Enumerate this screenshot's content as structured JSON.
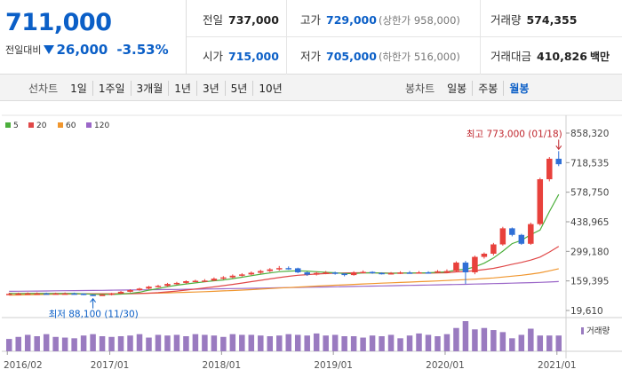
{
  "quote": {
    "price": "711,000",
    "change_label": "전일대비",
    "change_value": "26,000",
    "change_pct": "-3.53%",
    "prev_close_label": "전일",
    "prev_close": "737,000",
    "high_label": "고가",
    "high": "729,000",
    "upper_limit": "(상한가 958,000)",
    "volume_label": "거래량",
    "volume": "574,355",
    "open_label": "시가",
    "open": "715,000",
    "low_label": "저가",
    "low": "705,000",
    "lower_limit": "(하한가 516,000)",
    "amount_label": "거래대금",
    "amount": "410,826",
    "amount_unit": "백만"
  },
  "toolbar": {
    "line_chart_label": "선차트",
    "periods": [
      "1일",
      "1주일",
      "3개월",
      "1년",
      "3년",
      "5년",
      "10년"
    ],
    "candle_chart_label": "봉차트",
    "candle_periods": [
      "일봉",
      "주봉",
      "월봉"
    ],
    "active_candle": "월봉"
  },
  "colors": {
    "up": "#e8413c",
    "down": "#2f6fd6",
    "ma5": "#4caf3c",
    "ma20": "#e04848",
    "ma60": "#f0962e",
    "ma120": "#9b67c8",
    "volume": "#9a7bc0"
  },
  "chart_data": {
    "type": "candlestick",
    "title": "",
    "legend": [
      "5",
      "20",
      "60",
      "120"
    ],
    "y_axis_labels": [
      "858,320",
      "718,535",
      "578,750",
      "438,965",
      "299,180",
      "159,395",
      "19,610"
    ],
    "y_ticks": [
      858320,
      718535,
      578750,
      438965,
      299180,
      159395,
      19610
    ],
    "ylim": [
      19610,
      858320
    ],
    "x_axis_labels": [
      "2016/02",
      "2017/01",
      "2018/01",
      "2019/01",
      "2020/01",
      "2021/01"
    ],
    "x_label_index": [
      0,
      11,
      23,
      35,
      47,
      59
    ],
    "high_annotation": "최고 773,000 (01/18)",
    "low_annotation": "최저 88,100 (11/30)",
    "volume_label": "거래량",
    "months": [
      "2016/02",
      "2016/03",
      "2016/04",
      "2016/05",
      "2016/06",
      "2016/07",
      "2016/08",
      "2016/09",
      "2016/10",
      "2016/11",
      "2016/12",
      "2017/01",
      "2017/02",
      "2017/03",
      "2017/04",
      "2017/05",
      "2017/06",
      "2017/07",
      "2017/08",
      "2017/09",
      "2017/10",
      "2017/11",
      "2017/12",
      "2018/01",
      "2018/02",
      "2018/03",
      "2018/04",
      "2018/05",
      "2018/06",
      "2018/07",
      "2018/08",
      "2018/09",
      "2018/10",
      "2018/11",
      "2018/12",
      "2019/01",
      "2019/02",
      "2019/03",
      "2019/04",
      "2019/05",
      "2019/06",
      "2019/07",
      "2019/08",
      "2019/09",
      "2019/10",
      "2019/11",
      "2019/12",
      "2020/01",
      "2020/02",
      "2020/03",
      "2020/04",
      "2020/05",
      "2020/06",
      "2020/07",
      "2020/08",
      "2020/09",
      "2020/10",
      "2020/11",
      "2020/12",
      "2021/01"
    ],
    "open": [
      97000,
      98000,
      99000,
      100000,
      100000,
      99000,
      100000,
      100000,
      99000,
      94000,
      90000,
      94000,
      100000,
      108000,
      116000,
      123000,
      132000,
      136000,
      145000,
      150000,
      158000,
      160000,
      161000,
      170000,
      176000,
      184000,
      190000,
      198000,
      206000,
      214000,
      220000,
      219000,
      200000,
      189000,
      197000,
      199000,
      194000,
      187000,
      199000,
      202000,
      197000,
      194000,
      196000,
      199000,
      198000,
      200000,
      199000,
      205000,
      206000,
      246000,
      200000,
      273000,
      288000,
      332000,
      408000,
      377000,
      335000,
      428000,
      640000,
      737000
    ],
    "close": [
      98000,
      99000,
      100000,
      100000,
      99000,
      100000,
      100000,
      99000,
      94000,
      90000,
      94000,
      100000,
      108000,
      116000,
      123000,
      132000,
      136000,
      145000,
      150000,
      158000,
      160000,
      161000,
      170000,
      176000,
      184000,
      190000,
      198000,
      206000,
      214000,
      220000,
      219000,
      200000,
      189000,
      197000,
      199000,
      194000,
      187000,
      199000,
      202000,
      197000,
      194000,
      196000,
      199000,
      198000,
      200000,
      199000,
      205000,
      206000,
      246000,
      200000,
      273000,
      288000,
      332000,
      408000,
      377000,
      335000,
      428000,
      640000,
      737000,
      711000
    ],
    "high": [
      103000,
      104000,
      105000,
      105000,
      104000,
      104000,
      105000,
      104000,
      101000,
      96000,
      97000,
      103000,
      112000,
      120000,
      127000,
      136000,
      141000,
      150000,
      155000,
      162000,
      165000,
      168000,
      176000,
      182000,
      190000,
      196000,
      204000,
      212000,
      220000,
      230000,
      228000,
      222000,
      204000,
      203000,
      206000,
      203000,
      196000,
      205000,
      209000,
      205000,
      200000,
      201000,
      205000,
      206000,
      206000,
      205000,
      211000,
      214000,
      252000,
      254000,
      279000,
      294000,
      339000,
      415000,
      412000,
      382000,
      435000,
      647000,
      745000,
      773000
    ],
    "low": [
      93000,
      94000,
      95000,
      96000,
      95000,
      95000,
      96000,
      95000,
      92000,
      88100,
      89000,
      91000,
      97000,
      105000,
      113000,
      120000,
      128000,
      132000,
      141000,
      146000,
      154000,
      156000,
      158000,
      166000,
      172000,
      180000,
      186000,
      193000,
      201000,
      208000,
      212000,
      196000,
      183000,
      185000,
      191000,
      189000,
      181000,
      184000,
      195000,
      193000,
      190000,
      190000,
      192000,
      194000,
      195000,
      194000,
      196000,
      199000,
      202000,
      145000,
      191000,
      265000,
      280000,
      326000,
      370000,
      330000,
      330000,
      421000,
      630000,
      702000
    ],
    "ma5": [
      100000,
      99000,
      99500,
      99500,
      99200,
      99600,
      99800,
      99600,
      98400,
      96400,
      95400,
      95400,
      97200,
      100400,
      106200,
      115800,
      123000,
      131800,
      139000,
      145000,
      150000,
      155000,
      160000,
      164000,
      170000,
      177000,
      184000,
      191000,
      197000,
      203000,
      206000,
      207000,
      206000,
      203000,
      200000,
      198000,
      194000,
      194000,
      197000,
      198000,
      196000,
      195000,
      196000,
      197000,
      197000,
      198000,
      200000,
      202000,
      211000,
      214000,
      226000,
      243000,
      268000,
      300000,
      336000,
      351000,
      378000,
      400000,
      487000,
      568000
    ],
    "ma20": [
      100000,
      100000,
      99800,
      99600,
      99500,
      99300,
      99200,
      99100,
      98900,
      98600,
      98300,
      98000,
      98200,
      98800,
      99800,
      101500,
      104000,
      107500,
      111500,
      116000,
      121000,
      126000,
      131000,
      137000,
      143000,
      149000,
      156000,
      162000,
      169000,
      175000,
      181000,
      186000,
      189000,
      192000,
      194000,
      196000,
      197000,
      198000,
      198000,
      198000,
      197000,
      196000,
      196000,
      196000,
      196000,
      196000,
      197000,
      198000,
      202000,
      204000,
      208000,
      213000,
      219000,
      228000,
      238000,
      247000,
      258000,
      272000,
      296000,
      323000
    ],
    "ma60": [
      92000,
      93000,
      94000,
      94800,
      95500,
      96200,
      96800,
      97400,
      97900,
      98300,
      98700,
      99000,
      99400,
      99900,
      100500,
      101200,
      102000,
      103000,
      104200,
      105500,
      107000,
      108600,
      110300,
      112100,
      114000,
      116100,
      118300,
      120600,
      123000,
      125500,
      128000,
      130400,
      132600,
      134800,
      137000,
      139100,
      141000,
      142900,
      144800,
      146700,
      148600,
      150400,
      152200,
      154000,
      155800,
      157600,
      159400,
      161200,
      163300,
      165400,
      167800,
      170600,
      173700,
      177600,
      181900,
      186200,
      191400,
      197700,
      206900,
      217200
    ],
    "ma120": [
      110000,
      110500,
      111000,
      111500,
      112000,
      112500,
      113000,
      113500,
      114000,
      114500,
      115000,
      115500,
      116000,
      116500,
      117000,
      117500,
      118000,
      118600,
      119200,
      119800,
      120400,
      121000,
      121700,
      122400,
      123100,
      123800,
      124500,
      125300,
      126100,
      126900,
      127700,
      128500,
      129300,
      130100,
      130900,
      131700,
      132500,
      133300,
      134100,
      134900,
      135700,
      136500,
      137300,
      138100,
      139000,
      139900,
      140800,
      141700,
      142600,
      143500,
      144500,
      145500,
      146600,
      147700,
      148800,
      150000,
      151300,
      152700,
      154300,
      156200
    ],
    "volume": [
      18,
      21,
      24,
      22,
      25,
      21,
      20,
      19,
      23,
      25,
      22,
      21,
      22,
      23,
      25,
      20,
      24,
      23,
      24,
      22,
      25,
      24,
      23,
      21,
      25,
      24,
      24,
      23,
      22,
      23,
      25,
      24,
      23,
      26,
      23,
      24,
      22,
      22,
      20,
      23,
      22,
      24,
      19,
      23,
      26,
      24,
      22,
      25,
      34,
      44,
      32,
      34,
      31,
      28,
      19,
      24,
      33,
      23,
      23,
      23
    ]
  }
}
